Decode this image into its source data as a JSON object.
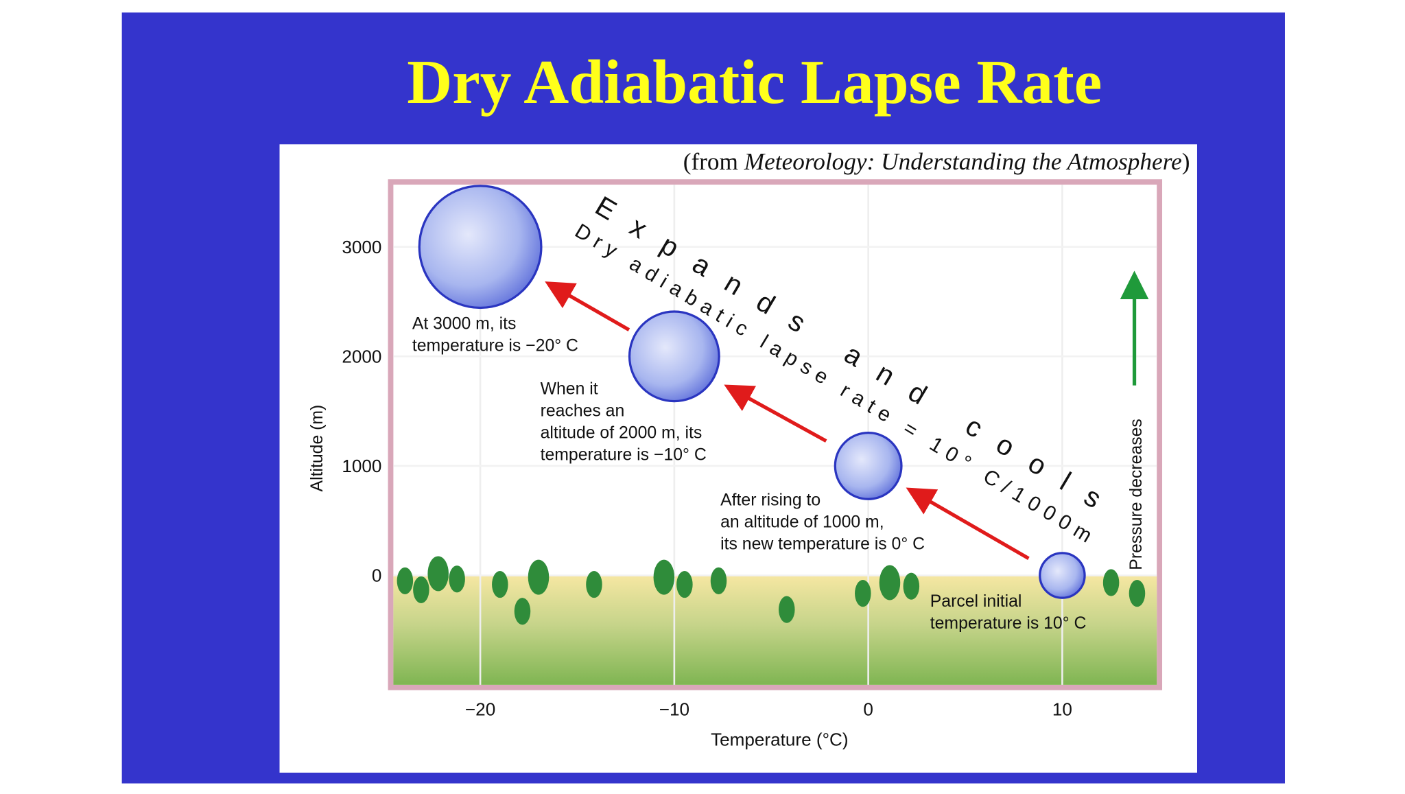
{
  "title": "Dry Adiabatic Lapse Rate",
  "source": {
    "prefix": "(from ",
    "book": "Meteorology: Understanding the Atmosphere",
    "suffix": ")"
  },
  "x_axis": {
    "label": "Temperature (°C)",
    "ticks": [
      {
        "value": -20,
        "label": "−20"
      },
      {
        "value": -10,
        "label": "−10"
      },
      0,
      10
    ]
  },
  "y_axis": {
    "label": "Altitude (m)",
    "ticks": [
      0,
      1000,
      2000,
      3000
    ]
  },
  "headline": "Expands and cools",
  "lapse_rate": "Dry adiabatic lapse rate = 10° C/1000m",
  "pressure_label": "Pressure decreases",
  "parcels": [
    {
      "temperature": 10,
      "altitude": 0,
      "label": [
        "Parcel initial",
        "temperature is 10° C"
      ]
    },
    {
      "temperature": 0,
      "altitude": 1000,
      "label": [
        "After rising to",
        "an altitude of 1000 m,",
        "its new temperature is 0° C"
      ]
    },
    {
      "temperature": -10,
      "altitude": 2000,
      "label": [
        "When it",
        "reaches an",
        "altitude of 2000 m, its",
        "temperature is −10° C"
      ]
    },
    {
      "temperature": -20,
      "altitude": 3000,
      "label": [
        "At 3000 m, its",
        "temperature is −20° C"
      ]
    }
  ]
}
